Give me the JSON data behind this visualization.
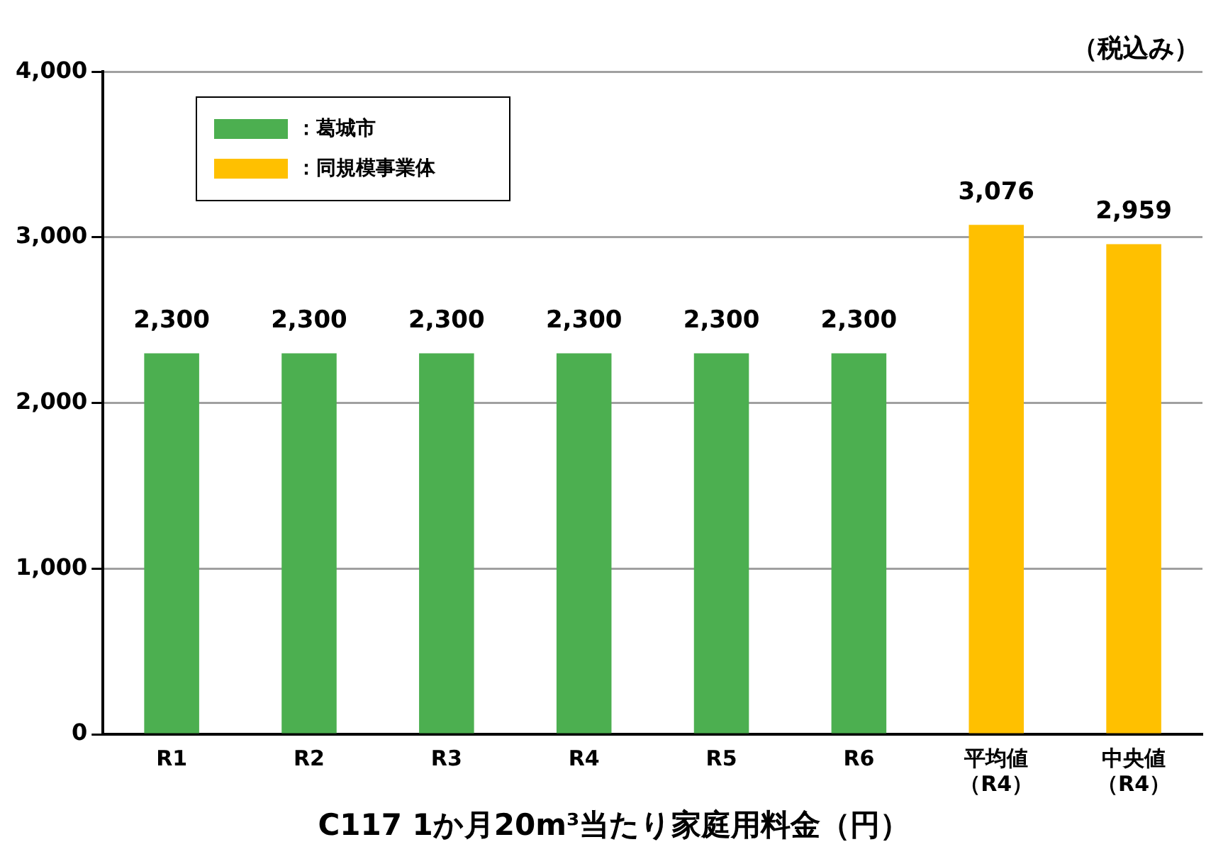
{
  "chart_data": {
    "type": "bar",
    "title": "C117 1か月20m³当たり家庭用料金（円）",
    "annotations": [
      "（税込み）"
    ],
    "categories": [
      "R1",
      "R2",
      "R3",
      "R4",
      "R5",
      "R6",
      "平均値（R4）",
      "中央値（R4）"
    ],
    "series": [
      {
        "name": "：葛城市",
        "color": "#4caf50",
        "values": [
          2300,
          2300,
          2300,
          2300,
          2300,
          2300,
          null,
          null
        ],
        "value_labels": [
          "2,300",
          "2,300",
          "2,300",
          "2,300",
          "2,300",
          "2,300",
          null,
          null
        ]
      },
      {
        "name": "：同規模事業体",
        "color": "#ffc000",
        "values": [
          null,
          null,
          null,
          null,
          null,
          null,
          3076,
          2959
        ],
        "value_labels": [
          null,
          null,
          null,
          null,
          null,
          null,
          "3,076",
          "2,959"
        ]
      }
    ],
    "ylim": [
      0,
      4000
    ],
    "yticks": [
      {
        "value": 0,
        "label": "0"
      },
      {
        "value": 1000,
        "label": "1,000"
      },
      {
        "value": 2000,
        "label": "2,000"
      },
      {
        "value": 3000,
        "label": "3,000"
      },
      {
        "value": 4000,
        "label": "4,000"
      }
    ],
    "grid": "y",
    "legend": "top left"
  }
}
